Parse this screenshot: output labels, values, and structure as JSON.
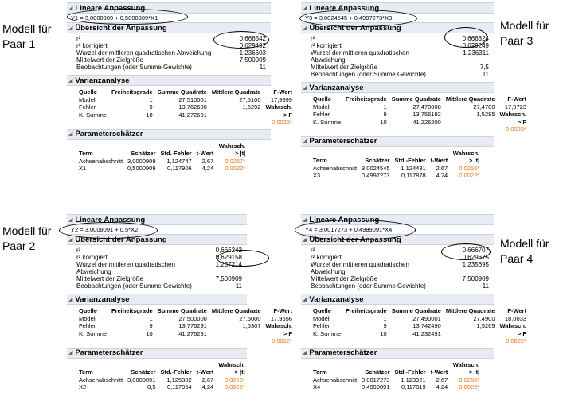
{
  "labels": {
    "m1": [
      "Modell für",
      "Paar 1"
    ],
    "m2": [
      "Modell für",
      "Paar 2"
    ],
    "m3": [
      "Modell für",
      "Paar 3"
    ],
    "m4": [
      "Modell für",
      "Paar 4"
    ]
  },
  "common": {
    "lin_title": "Lineare Anpassung",
    "summary_title": "Übersicht der Anpassung",
    "summary_labels": [
      "r²",
      "r² korrigiert",
      "Wurzel der mittleren quadratischen Abweichung",
      "Mittelwert der Zielgröße",
      "Beobachtungen (oder Summe Gewichte)"
    ],
    "anova_title": "Varianzanalyse",
    "anova_headers": [
      "Quelle",
      "Freiheitsgrade",
      "Summe Quadrate",
      "Mittlere Quadrate",
      "F-Wert"
    ],
    "anova_rows": [
      "Modell",
      "Fehler",
      "K. Summe"
    ],
    "wahrsch": "Wahrsch.",
    "gt_f": "> F",
    "param_title": "Parameterschätzer",
    "param_headers": [
      "Term",
      "Schätzer",
      "Std.-Fehler",
      "t-Wert",
      "Wahrsch. > |t|"
    ],
    "intercept": "Achsenabschnitt"
  },
  "panels": [
    {
      "equation": "Y1 = 3,0000909 + 0,5000909*X1",
      "summary": [
        "0,666542",
        "0,629492",
        "1,236603",
        "7,500909",
        "11"
      ],
      "anova": [
        [
          "Modell",
          "1",
          "27,510001",
          "27,5100",
          "17,9899"
        ],
        [
          "Fehler",
          "9",
          "13,762690",
          "1,5292",
          ""
        ],
        [
          "K. Summe",
          "10",
          "41,272691",
          "",
          ""
        ]
      ],
      "p_f": "0,0022*",
      "params": [
        [
          "Achsenabschnitt",
          "3,0000909",
          "1,124747",
          "2,67",
          "0,0257*"
        ],
        [
          "X1",
          "0,5000909",
          "0,117906",
          "4,24",
          "0,0022*"
        ]
      ]
    },
    {
      "equation": "Y2 = 3,0009091 + 0,5*X2",
      "summary": [
        "0,666242",
        "0,629158",
        "1,237214",
        "7,500909",
        "11"
      ],
      "anova": [
        [
          "Modell",
          "1",
          "27,500000",
          "27,5000",
          "17,9656"
        ],
        [
          "Fehler",
          "9",
          "13,776291",
          "1,5307",
          ""
        ],
        [
          "K. Summe",
          "10",
          "41,276291",
          "",
          ""
        ]
      ],
      "p_f": "0,0022*",
      "params": [
        [
          "Achsenabschnitt",
          "3,0009091",
          "1,125302",
          "2,67",
          "0,0258*"
        ],
        [
          "X2",
          "0,5",
          "0,117964",
          "4,24",
          "0,0022*"
        ]
      ]
    },
    {
      "equation": "Y3 = 3,0024545 + 0,4997273*X3",
      "summary": [
        "0,666324",
        "0,629249",
        "1,236311",
        "7,5",
        "11"
      ],
      "anova": [
        [
          "Modell",
          "1",
          "27,470008",
          "27,4700",
          "17,9723"
        ],
        [
          "Fehler",
          "9",
          "13,756192",
          "1,5285",
          ""
        ],
        [
          "K. Summe",
          "10",
          "41,226200",
          "",
          ""
        ]
      ],
      "p_f": "0,0022*",
      "params": [
        [
          "Achsenabschnitt",
          "3,0024545",
          "1,124481",
          "2,67",
          "0,0256*"
        ],
        [
          "X3",
          "0,4997273",
          "0,117878",
          "4,24",
          "0,0022*"
        ]
      ]
    },
    {
      "equation": "Y4 = 3,0017273 + 0,4999091*X4",
      "summary": [
        "0,666707",
        "0,629675",
        "1,235695",
        "7,500909",
        "11"
      ],
      "anova": [
        [
          "Modell",
          "1",
          "27,490001",
          "27,4900",
          "18,0033"
        ],
        [
          "Fehler",
          "9",
          "13,742490",
          "1,5269",
          ""
        ],
        [
          "K. Summe",
          "10",
          "41,232491",
          "",
          ""
        ]
      ],
      "p_f": "0,0022*",
      "params": [
        [
          "Achsenabschnitt",
          "3,0017273",
          "1,123921",
          "2,67",
          "0,0256*"
        ],
        [
          "X4",
          "0,4999091",
          "0,117819",
          "4,24",
          "0,0022*"
        ]
      ]
    }
  ]
}
